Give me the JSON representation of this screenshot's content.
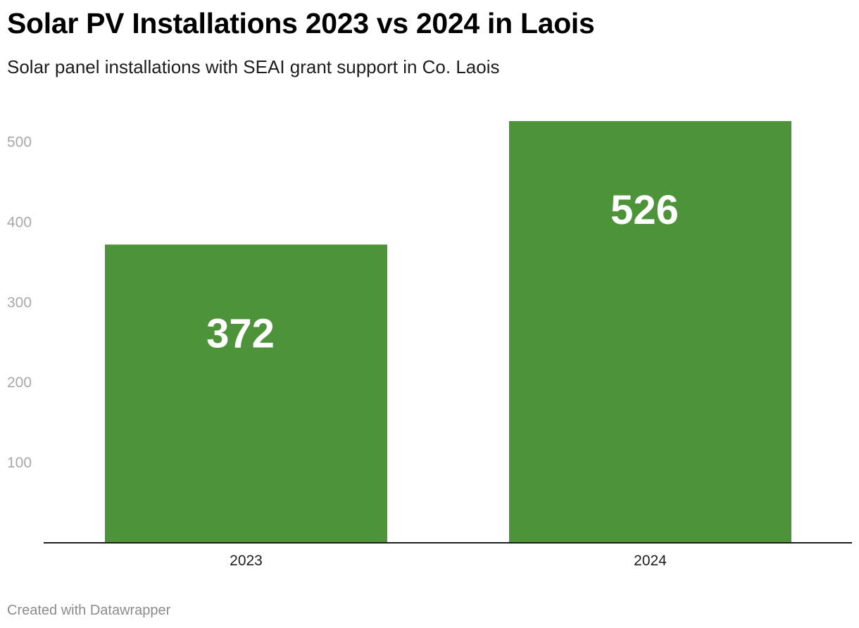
{
  "header": {
    "title": "Solar PV Installations 2023 vs 2024 in Laois",
    "subtitle": "Solar panel installations with SEAI grant support in Co. Laois"
  },
  "footer": {
    "credit": "Created with Datawrapper"
  },
  "colors": {
    "bar": "#4c933a",
    "axis_line": "#1d1d1d",
    "tick_label": "#a8a8a8",
    "data_label": "#ffffff"
  },
  "chart_data": {
    "type": "bar",
    "title": "Solar PV Installations 2023 vs 2024 in Laois",
    "subtitle": "Solar panel installations with SEAI grant support in Co. Laois",
    "categories": [
      "2023",
      "2024"
    ],
    "values": [
      372,
      526
    ],
    "data_labels": [
      "372",
      "526"
    ],
    "xlabel": "",
    "ylabel": "",
    "ylim": [
      0,
      526
    ],
    "yticks": [
      100,
      200,
      300,
      400,
      500
    ],
    "grid": false,
    "legend": "none"
  }
}
